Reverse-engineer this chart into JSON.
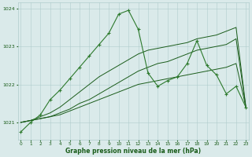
{
  "bg_color": "#daeaea",
  "grid_color": "#b0cccc",
  "line_color_dark": "#1a5c1a",
  "line_color_med": "#2d7a2d",
  "xlabel": "Graphe pression niveau de la mer (hPa)",
  "x_ticks": [
    0,
    1,
    2,
    3,
    4,
    5,
    6,
    7,
    8,
    9,
    10,
    11,
    12,
    13,
    14,
    15,
    16,
    17,
    18,
    19,
    20,
    21,
    22,
    23
  ],
  "ylim": [
    1020.55,
    1024.15
  ],
  "xlim": [
    -0.3,
    23.3
  ],
  "yticks": [
    1021,
    1022,
    1023,
    1024
  ],
  "series_jagged": [
    1020.75,
    1021.0,
    1021.2,
    1021.6,
    1021.85,
    1022.15,
    1022.45,
    1022.75,
    1023.05,
    1023.35,
    1023.85,
    1023.95,
    1023.45,
    1022.3,
    1021.95,
    1022.1,
    1022.2,
    1022.55,
    1023.15,
    1022.5,
    1022.25,
    1021.75,
    1021.95,
    1021.4
  ],
  "series_trend1": [
    1021.0,
    1021.05,
    1021.1,
    1021.15,
    1021.2,
    1021.3,
    1021.4,
    1021.5,
    1021.6,
    1021.7,
    1021.8,
    1021.9,
    1022.0,
    1022.05,
    1022.1,
    1022.15,
    1022.2,
    1022.25,
    1022.3,
    1022.35,
    1022.4,
    1022.45,
    1022.55,
    1021.4
  ],
  "series_trend2": [
    1021.0,
    1021.05,
    1021.1,
    1021.15,
    1021.25,
    1021.35,
    1021.5,
    1021.6,
    1021.75,
    1021.9,
    1022.05,
    1022.2,
    1022.35,
    1022.45,
    1022.55,
    1022.6,
    1022.7,
    1022.8,
    1022.9,
    1022.95,
    1023.0,
    1023.05,
    1023.2,
    1021.4
  ],
  "series_trend3": [
    1021.0,
    1021.05,
    1021.15,
    1021.25,
    1021.4,
    1021.6,
    1021.8,
    1022.0,
    1022.2,
    1022.35,
    1022.5,
    1022.65,
    1022.8,
    1022.9,
    1022.95,
    1023.0,
    1023.05,
    1023.1,
    1023.2,
    1023.25,
    1023.3,
    1023.4,
    1023.5,
    1021.4
  ]
}
